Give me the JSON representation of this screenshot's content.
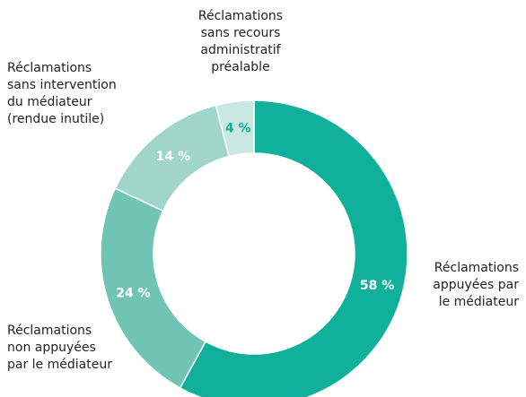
{
  "chart_data": {
    "type": "donut",
    "categories": [
      "Réclamations\nappuyées par\nle médiateur",
      "Réclamations\nnon appuyées\npar le médiateur",
      "Réclamations\nsans intervention\ndu médiateur\n(rendue inutile)",
      "Réclamations\nsans recours\nadministratif\npréalable"
    ],
    "values": [
      58,
      24,
      14,
      4
    ],
    "value_labels": [
      "58 %",
      "24 %",
      "14 %",
      "4 %"
    ],
    "colors": [
      "#10b09a",
      "#6fc4b3",
      "#a0d6ca",
      "#c8e8e1"
    ]
  }
}
